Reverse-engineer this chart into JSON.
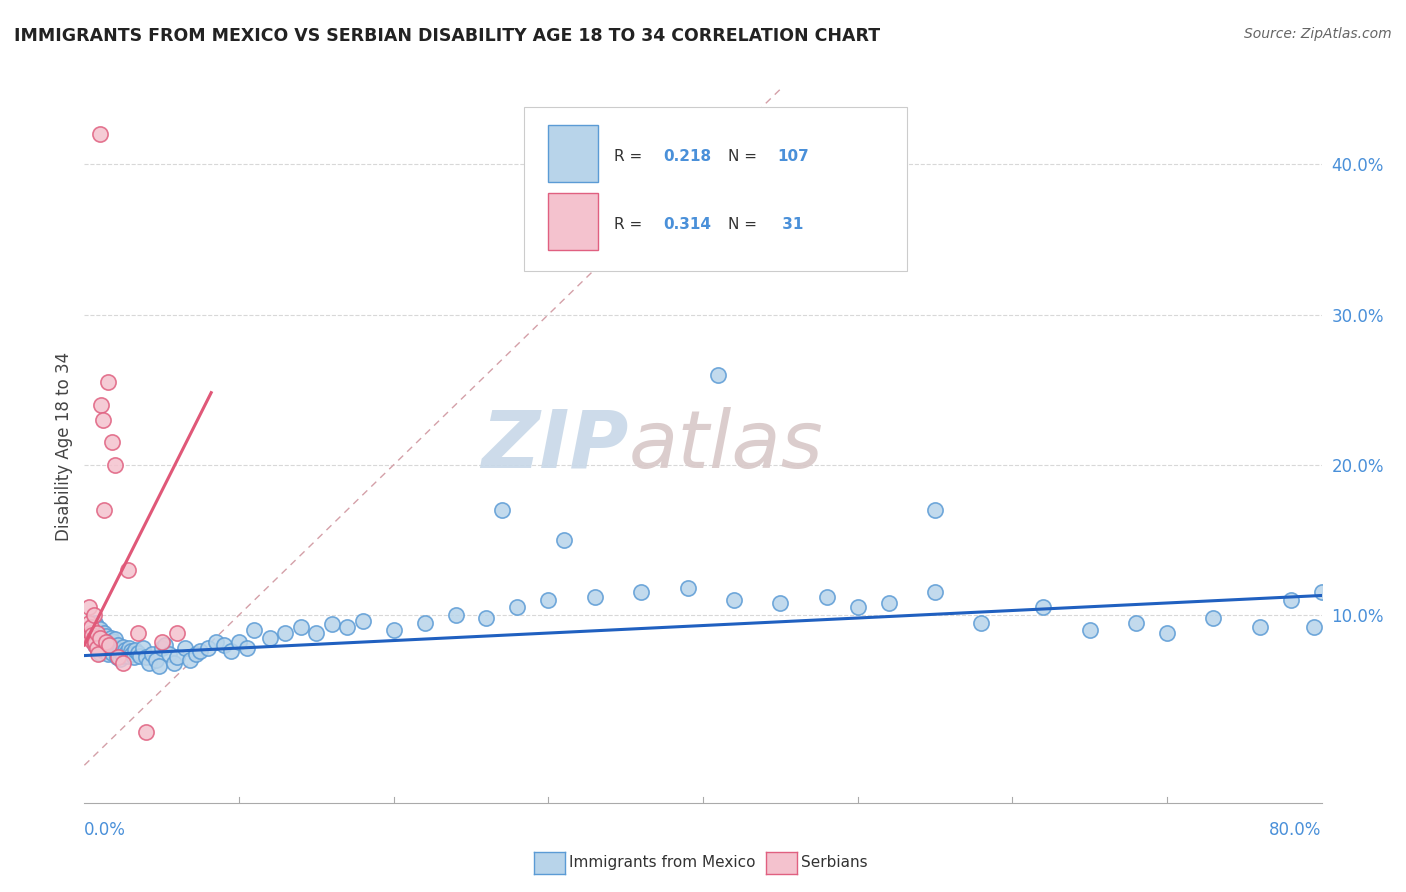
{
  "title": "IMMIGRANTS FROM MEXICO VS SERBIAN DISABILITY AGE 18 TO 34 CORRELATION CHART",
  "source": "Source: ZipAtlas.com",
  "ylabel": "Disability Age 18 to 34",
  "xmin": 0.0,
  "xmax": 0.8,
  "ymin": -0.025,
  "ymax": 0.45,
  "watermark_zip": "ZIP",
  "watermark_atlas": "atlas",
  "legend_label1": "Immigrants from Mexico",
  "legend_label2": "Serbians",
  "color_mexico_fill": "#b8d4ea",
  "color_mexico_edge": "#5b9bd5",
  "color_serbia_fill": "#f4c2ce",
  "color_serbia_edge": "#e06080",
  "color_mexico_line": "#2060c0",
  "color_serbia_line": "#e05878",
  "color_diag_line": "#d4a0a8",
  "mexico_x": [
    0.005,
    0.006,
    0.007,
    0.007,
    0.008,
    0.008,
    0.009,
    0.009,
    0.01,
    0.01,
    0.01,
    0.011,
    0.011,
    0.012,
    0.012,
    0.013,
    0.013,
    0.014,
    0.014,
    0.015,
    0.015,
    0.016,
    0.016,
    0.017,
    0.017,
    0.018,
    0.018,
    0.019,
    0.02,
    0.02,
    0.021,
    0.021,
    0.022,
    0.022,
    0.023,
    0.023,
    0.024,
    0.025,
    0.025,
    0.026,
    0.027,
    0.028,
    0.029,
    0.03,
    0.031,
    0.032,
    0.033,
    0.035,
    0.036,
    0.038,
    0.04,
    0.042,
    0.044,
    0.046,
    0.048,
    0.05,
    0.052,
    0.055,
    0.058,
    0.06,
    0.065,
    0.068,
    0.072,
    0.075,
    0.08,
    0.085,
    0.09,
    0.095,
    0.1,
    0.105,
    0.11,
    0.12,
    0.13,
    0.14,
    0.15,
    0.16,
    0.17,
    0.18,
    0.2,
    0.22,
    0.24,
    0.26,
    0.28,
    0.3,
    0.33,
    0.36,
    0.39,
    0.42,
    0.45,
    0.48,
    0.5,
    0.52,
    0.55,
    0.58,
    0.62,
    0.65,
    0.68,
    0.7,
    0.73,
    0.76,
    0.78,
    0.795,
    0.8,
    0.55,
    0.31,
    0.27,
    0.41
  ],
  "mexico_y": [
    0.09,
    0.085,
    0.095,
    0.08,
    0.088,
    0.092,
    0.078,
    0.082,
    0.086,
    0.091,
    0.075,
    0.083,
    0.087,
    0.079,
    0.084,
    0.088,
    0.076,
    0.081,
    0.086,
    0.08,
    0.074,
    0.082,
    0.077,
    0.085,
    0.079,
    0.083,
    0.075,
    0.08,
    0.084,
    0.078,
    0.072,
    0.076,
    0.08,
    0.074,
    0.077,
    0.071,
    0.075,
    0.079,
    0.073,
    0.077,
    0.075,
    0.073,
    0.078,
    0.076,
    0.074,
    0.072,
    0.077,
    0.075,
    0.073,
    0.078,
    0.072,
    0.068,
    0.074,
    0.07,
    0.066,
    0.078,
    0.08,
    0.074,
    0.068,
    0.072,
    0.078,
    0.07,
    0.074,
    0.076,
    0.078,
    0.082,
    0.08,
    0.076,
    0.082,
    0.078,
    0.09,
    0.085,
    0.088,
    0.092,
    0.088,
    0.094,
    0.092,
    0.096,
    0.09,
    0.095,
    0.1,
    0.098,
    0.105,
    0.11,
    0.112,
    0.115,
    0.118,
    0.11,
    0.108,
    0.112,
    0.105,
    0.108,
    0.115,
    0.095,
    0.105,
    0.09,
    0.095,
    0.088,
    0.098,
    0.092,
    0.11,
    0.092,
    0.115,
    0.17,
    0.15,
    0.17,
    0.26
  ],
  "serbia_x": [
    0.002,
    0.003,
    0.003,
    0.004,
    0.004,
    0.005,
    0.005,
    0.006,
    0.006,
    0.007,
    0.007,
    0.008,
    0.008,
    0.009,
    0.01,
    0.01,
    0.011,
    0.012,
    0.013,
    0.014,
    0.015,
    0.016,
    0.018,
    0.02,
    0.022,
    0.025,
    0.028,
    0.035,
    0.04,
    0.05,
    0.06
  ],
  "serbia_y": [
    0.09,
    0.095,
    0.105,
    0.088,
    0.092,
    0.083,
    0.087,
    0.1,
    0.085,
    0.08,
    0.082,
    0.088,
    0.078,
    0.074,
    0.085,
    0.42,
    0.24,
    0.23,
    0.17,
    0.082,
    0.255,
    0.08,
    0.215,
    0.2,
    0.072,
    0.068,
    0.13,
    0.088,
    0.022,
    0.082,
    0.088
  ],
  "blue_line_x": [
    0.0,
    0.8
  ],
  "blue_line_y": [
    0.073,
    0.113
  ],
  "pink_line_x": [
    0.0,
    0.082
  ],
  "pink_line_y": [
    0.08,
    0.248
  ],
  "diag_line_x": [
    0.0,
    0.45
  ],
  "diag_line_y": [
    0.0,
    0.45
  ],
  "ytick_vals": [
    0.1,
    0.2,
    0.3,
    0.4
  ],
  "ytick_labels": [
    "10.0%",
    "20.0%",
    "30.0%",
    "40.0%"
  ]
}
